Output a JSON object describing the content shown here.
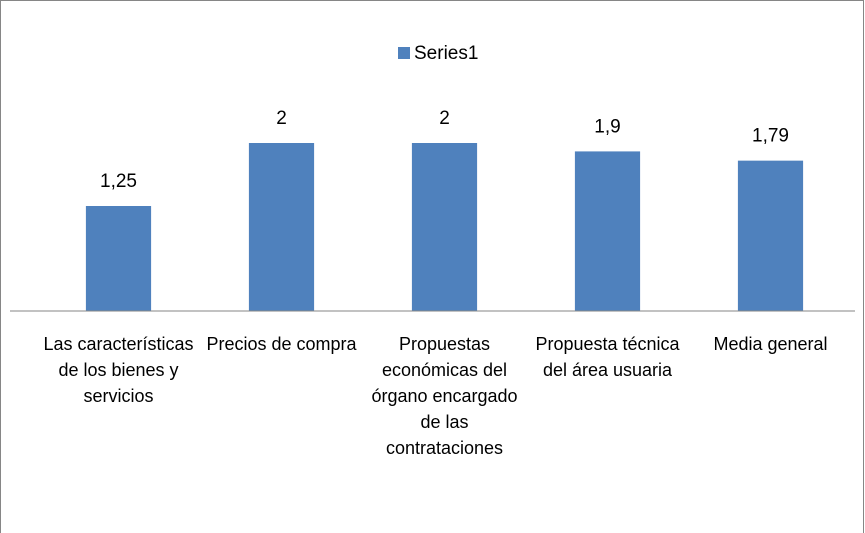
{
  "chart_data": {
    "type": "bar",
    "categories": [
      "Las características de los bienes y servicios",
      "Precios de compra",
      "Propuestas económicas del órgano encargado de las contrataciones",
      "Propuesta técnica del área usuaria",
      "Media general"
    ],
    "series": [
      {
        "name": "Series1",
        "color": "#4f81bd",
        "values": [
          1.25,
          2,
          2,
          1.9,
          1.79
        ],
        "value_labels": [
          "1,25",
          "2",
          "2",
          "1,9",
          "1,79"
        ]
      }
    ],
    "ylim": [
      0,
      2.5
    ],
    "legend": "top"
  }
}
